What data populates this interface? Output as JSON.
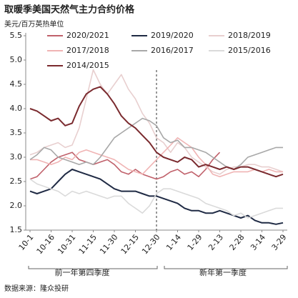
{
  "chart_data": {
    "type": "line",
    "title": "取暖季美国天然气主力合约价格",
    "ylabel": "美元/百万英热单位",
    "categories": [
      "10-1",
      null,
      null,
      "10-16",
      null,
      null,
      "10-31",
      null,
      null,
      "11-15",
      null,
      null,
      "11-30",
      null,
      null,
      "12-15",
      null,
      null,
      "12-30",
      null,
      null,
      "1-14",
      null,
      null,
      "1-29",
      null,
      null,
      "2-13",
      null,
      null,
      "2-28",
      null,
      null,
      "3-14",
      null,
      null,
      "3-29"
    ],
    "series": [
      {
        "name": "2020/2021",
        "color": "#c0606a",
        "values": [
          2.55,
          2.6,
          2.75,
          2.9,
          3.0,
          3.05,
          3.1,
          2.95,
          2.9,
          2.85,
          2.9,
          2.95,
          2.85,
          2.7,
          2.65,
          2.75,
          2.65,
          2.6,
          2.55,
          2.6,
          2.7,
          2.75,
          2.65,
          2.7,
          2.6,
          2.75,
          2.95,
          3.1,
          null,
          null,
          null,
          null,
          null,
          null,
          null,
          null,
          null
        ]
      },
      {
        "name": "2019/2020",
        "color": "#1f2a44",
        "values": [
          2.3,
          2.25,
          2.3,
          2.35,
          2.5,
          2.65,
          2.75,
          2.7,
          2.65,
          2.6,
          2.55,
          2.45,
          2.35,
          2.3,
          2.3,
          2.3,
          2.25,
          2.2,
          2.2,
          2.15,
          2.1,
          2.05,
          1.95,
          1.9,
          1.9,
          1.85,
          1.85,
          1.9,
          1.85,
          1.8,
          1.75,
          1.8,
          1.7,
          1.65,
          1.65,
          1.62,
          1.65
        ]
      },
      {
        "name": "2018/2019",
        "color": "#e8cfcf",
        "values": [
          3.05,
          3.1,
          3.2,
          3.25,
          3.3,
          3.2,
          3.25,
          3.6,
          4.2,
          4.8,
          4.5,
          4.3,
          4.5,
          4.7,
          4.4,
          4.2,
          3.9,
          3.7,
          3.4,
          3.3,
          3.1,
          3.3,
          3.2,
          3.0,
          2.9,
          2.8,
          2.7,
          2.65,
          2.75,
          2.8,
          2.8,
          2.85,
          2.85,
          2.8,
          2.8,
          2.75,
          2.7
        ]
      },
      {
        "name": "2017/2018",
        "color": "#f0b4b4",
        "values": [
          2.95,
          2.95,
          2.9,
          2.85,
          2.9,
          3.0,
          2.95,
          3.1,
          3.15,
          3.1,
          3.05,
          3.0,
          2.95,
          2.85,
          2.75,
          2.7,
          2.65,
          2.8,
          2.95,
          3.1,
          3.25,
          3.4,
          3.3,
          3.2,
          3.0,
          2.85,
          2.65,
          2.6,
          2.65,
          2.7,
          2.7,
          2.7,
          2.75,
          2.7,
          2.75,
          2.7,
          2.7
        ]
      },
      {
        "name": "2016/2017",
        "color": "#a8a8a8",
        "values": [
          2.95,
          3.05,
          3.2,
          3.15,
          3.0,
          2.95,
          2.9,
          2.85,
          2.9,
          2.85,
          3.0,
          3.2,
          3.4,
          3.5,
          3.6,
          3.7,
          3.8,
          3.75,
          3.65,
          3.4,
          3.3,
          3.35,
          3.2,
          3.2,
          3.15,
          3.1,
          3.0,
          2.9,
          2.8,
          2.75,
          2.85,
          3.0,
          3.05,
          3.1,
          3.15,
          3.2,
          3.2
        ]
      },
      {
        "name": "2015/2016",
        "color": "#dadada",
        "values": [
          2.55,
          2.45,
          2.4,
          2.35,
          2.3,
          2.2,
          2.3,
          2.25,
          2.3,
          2.25,
          2.2,
          2.15,
          2.2,
          2.2,
          2.05,
          1.95,
          1.85,
          2.0,
          2.25,
          2.35,
          2.35,
          2.3,
          2.25,
          2.2,
          2.15,
          2.05,
          2.0,
          1.95,
          1.9,
          1.8,
          1.85,
          1.75,
          1.8,
          1.85,
          1.9,
          1.95,
          1.95
        ]
      },
      {
        "name": "2014/2015",
        "color": "#7a2a2e",
        "values": [
          4.0,
          3.95,
          3.85,
          3.75,
          3.8,
          3.65,
          3.7,
          4.05,
          4.3,
          4.4,
          4.45,
          4.3,
          4.1,
          3.85,
          3.7,
          3.6,
          3.45,
          3.3,
          3.1,
          3.0,
          2.95,
          2.9,
          3.0,
          2.95,
          2.8,
          2.85,
          2.8,
          2.75,
          2.8,
          2.75,
          2.8,
          2.8,
          2.75,
          2.7,
          2.65,
          2.6,
          2.65
        ]
      }
    ],
    "ylim": [
      1.5,
      5.5
    ],
    "yticks": [
      1.5,
      {
        "value": 2,
        "label": "2.0"
      },
      2.5,
      {
        "value": 3,
        "label": "3.0"
      },
      3.5,
      {
        "value": 4,
        "label": "4.0"
      },
      4.5,
      {
        "value": 5,
        "label": "5.0"
      },
      5.5
    ],
    "grid": false,
    "annotations": [
      "前一年第四季度",
      "新年第一季度"
    ],
    "source": "数据来源：隆众投研"
  }
}
